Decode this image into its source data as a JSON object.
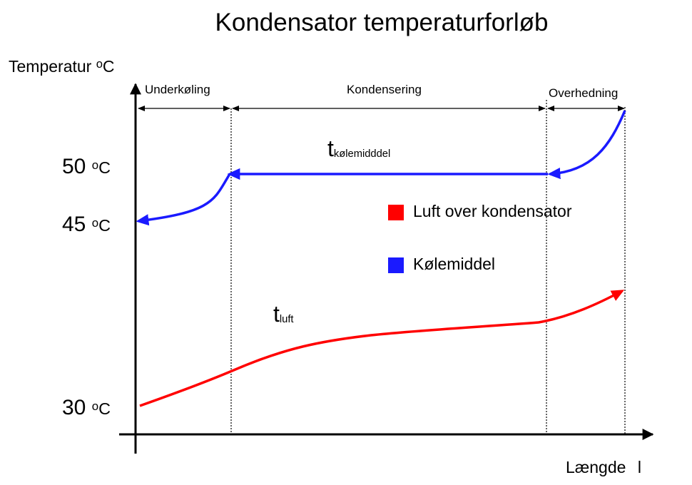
{
  "title": "Kondensator temperaturforløb",
  "y_axis": {
    "label": "Temperatur",
    "unit_sup": "o",
    "unit": "C"
  },
  "x_axis": {
    "label": "Længde",
    "symbol": "l"
  },
  "ticks": [
    {
      "value": "50",
      "sup": "o",
      "unit": "C"
    },
    {
      "value": "45",
      "sup": "o",
      "unit": "C"
    },
    {
      "value": "30",
      "sup": "o",
      "unit": "C"
    }
  ],
  "regions": [
    "Underkøling",
    "Kondensering",
    "Overhedning"
  ],
  "curves": {
    "refrigerant": {
      "base": "t",
      "sub": "kølemidddel",
      "color": "#1a1aff"
    },
    "air": {
      "base": "t",
      "sub": "luft",
      "color": "#ff0000"
    }
  },
  "legend": [
    {
      "label": "Luft over kondensator",
      "color": "#ff0000"
    },
    {
      "label": "Kølemiddel",
      "color": "#1a1aff"
    }
  ]
}
